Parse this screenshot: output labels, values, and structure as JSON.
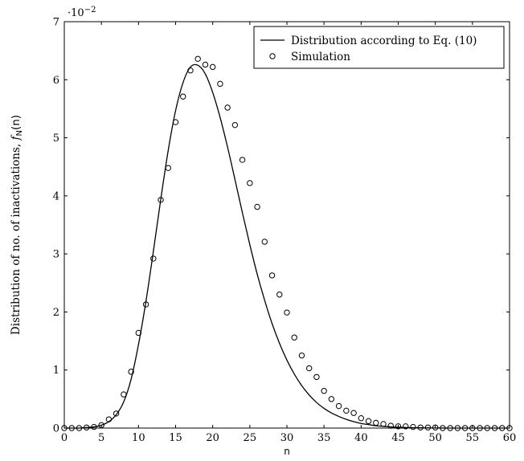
{
  "chart_data": {
    "type": "line",
    "title": "",
    "xlabel": "n",
    "ylabel": "Distribution of no. of inactivations, f_N(n)",
    "ylabel_main": "Distribution of no. of inactivations, ",
    "ylabel_f": "f",
    "ylabel_sub": "N",
    "ylabel_tail": "(n)",
    "y_multiplier_base": "·10",
    "y_multiplier_exp": "−2",
    "xlim": [
      0,
      60
    ],
    "ylim": [
      0,
      7
    ],
    "x_ticks": [
      "0",
      "5",
      "10",
      "15",
      "20",
      "25",
      "30",
      "35",
      "40",
      "45",
      "50",
      "55",
      "60"
    ],
    "y_ticks": [
      "0",
      "1",
      "2",
      "3",
      "4",
      "5",
      "6",
      "7"
    ],
    "legend_position": "top-right",
    "grid": false,
    "series": [
      {
        "name": "Distribution according to Eq. (10)",
        "style": "line",
        "color": "#000000",
        "x": [
          0,
          1,
          2,
          3,
          4,
          5,
          6,
          7,
          8,
          9,
          10,
          11,
          12,
          13,
          14,
          15,
          16,
          17,
          18,
          19,
          20,
          21,
          22,
          23,
          24,
          25,
          26,
          27,
          28,
          29,
          30,
          31,
          32,
          33,
          34,
          35,
          36,
          37,
          38,
          39,
          40,
          41,
          42,
          43,
          44,
          45,
          46,
          47,
          48,
          49,
          50,
          51,
          52,
          53,
          54,
          55,
          56,
          57,
          58,
          59,
          60
        ],
        "y": [
          0,
          0,
          0,
          0.01,
          0.02,
          0.05,
          0.11,
          0.23,
          0.45,
          0.84,
          1.44,
          2.18,
          3.04,
          3.94,
          4.78,
          5.47,
          5.95,
          6.22,
          6.25,
          6.1,
          5.78,
          5.35,
          4.84,
          4.28,
          3.71,
          3.16,
          2.65,
          2.2,
          1.8,
          1.46,
          1.17,
          0.93,
          0.73,
          0.57,
          0.44,
          0.34,
          0.26,
          0.2,
          0.15,
          0.11,
          0.08,
          0.06,
          0.04,
          0.03,
          0.02,
          0.015,
          0.01,
          0.007,
          0.005,
          0.003,
          0.002,
          0.001,
          0,
          0,
          0,
          0,
          0,
          0,
          0,
          0,
          0
        ]
      },
      {
        "name": "Simulation",
        "style": "marker",
        "color": "#000000",
        "x": [
          0,
          1,
          2,
          3,
          4,
          5,
          6,
          7,
          8,
          9,
          10,
          11,
          12,
          13,
          14,
          15,
          16,
          17,
          18,
          19,
          20,
          21,
          22,
          23,
          24,
          25,
          26,
          27,
          28,
          29,
          30,
          31,
          32,
          33,
          34,
          35,
          36,
          37,
          38,
          39,
          40,
          41,
          42,
          43,
          44,
          45,
          46,
          47,
          48,
          49,
          50,
          51,
          52,
          53,
          54,
          55,
          56,
          57,
          58,
          59,
          60
        ],
        "y": [
          0,
          0,
          0,
          0.01,
          0.02,
          0.05,
          0.15,
          0.25,
          0.58,
          0.97,
          1.64,
          2.13,
          2.92,
          3.93,
          4.48,
          5.27,
          5.71,
          6.16,
          6.36,
          6.26,
          6.22,
          5.93,
          5.52,
          5.22,
          4.62,
          4.22,
          3.81,
          3.21,
          2.63,
          2.3,
          1.99,
          1.56,
          1.25,
          1.03,
          0.88,
          0.64,
          0.5,
          0.38,
          0.3,
          0.26,
          0.17,
          0.12,
          0.09,
          0.07,
          0.04,
          0.03,
          0.03,
          0.02,
          0.01,
          0.01,
          0.01,
          0,
          0,
          0,
          0,
          0,
          0,
          0,
          0,
          0,
          0
        ]
      }
    ]
  }
}
